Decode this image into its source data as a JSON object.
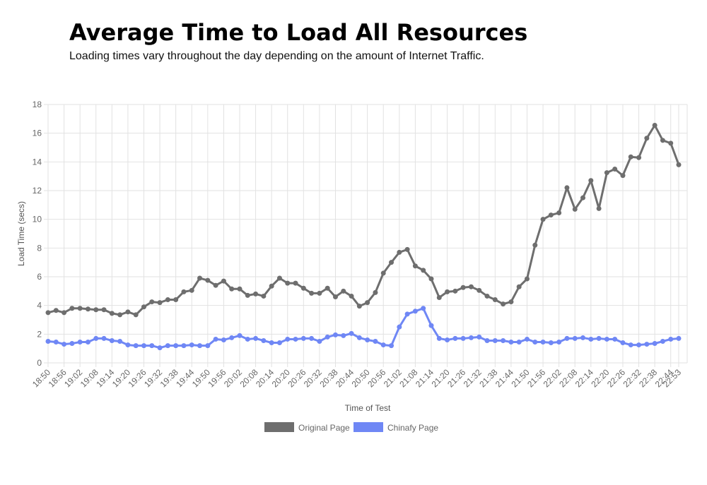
{
  "chart_data": {
    "type": "line",
    "title": "Average Time to Load All Resources",
    "subtitle": "Loading times vary throughout the day depending on the amount of Internet Traffic.",
    "x_label": "Time of Test",
    "y_label": "Load Time (secs)",
    "categories": [
      "18:50",
      null,
      "18:56",
      null,
      "19:02",
      null,
      "19:08",
      null,
      "19:14",
      null,
      "19:20",
      null,
      "19:26",
      null,
      "19:32",
      null,
      "19:38",
      null,
      "19:44",
      null,
      "19:50",
      null,
      "19:56",
      null,
      "20:02",
      null,
      "20:08",
      null,
      "20:14",
      null,
      "20:20",
      null,
      "20:26",
      null,
      "20:32",
      null,
      "20:38",
      null,
      "20:44",
      null,
      "20:50",
      null,
      "20:56",
      null,
      "21:02",
      null,
      "21:08",
      null,
      "21:14",
      null,
      "21:20",
      null,
      "21:26",
      null,
      "21:32",
      null,
      "21:38",
      null,
      "21:44",
      null,
      "21:50",
      null,
      "21:56",
      null,
      "22:02",
      null,
      "22:08",
      null,
      "22:14",
      null,
      "22:20",
      null,
      "22:26",
      null,
      "22:32",
      null,
      "22:38",
      null,
      "22:44",
      "22:53"
    ],
    "series": [
      {
        "name": "Original Page",
        "color": "#6e6e6e",
        "values": [
          3.5,
          3.65,
          3.5,
          3.8,
          3.8,
          3.75,
          3.7,
          3.7,
          3.45,
          3.35,
          3.55,
          3.35,
          3.9,
          4.25,
          4.2,
          4.4,
          4.4,
          4.95,
          5.05,
          5.9,
          5.75,
          5.4,
          5.7,
          5.15,
          5.15,
          4.7,
          4.8,
          4.65,
          5.35,
          5.9,
          5.55,
          5.55,
          5.2,
          4.85,
          4.85,
          5.2,
          4.6,
          5.0,
          4.65,
          3.95,
          4.2,
          4.9,
          6.25,
          7.0,
          7.7,
          7.9,
          6.75,
          6.45,
          5.85,
          4.55,
          4.95,
          5.0,
          5.25,
          5.3,
          5.05,
          4.65,
          4.4,
          4.1,
          4.25,
          5.3,
          5.85,
          8.2,
          10.0,
          10.3,
          10.45,
          12.2,
          10.7,
          11.5,
          12.7,
          10.75,
          13.25,
          13.5,
          13.05,
          14.35,
          14.3,
          15.65,
          16.55,
          15.5,
          15.3,
          13.8
        ]
      },
      {
        "name": "Chinafy Page",
        "color": "#6f87f5",
        "values": [
          1.5,
          1.45,
          1.3,
          1.35,
          1.45,
          1.45,
          1.7,
          1.7,
          1.55,
          1.5,
          1.25,
          1.2,
          1.2,
          1.2,
          1.05,
          1.2,
          1.2,
          1.2,
          1.25,
          1.2,
          1.2,
          1.65,
          1.6,
          1.75,
          1.9,
          1.65,
          1.7,
          1.55,
          1.4,
          1.4,
          1.65,
          1.65,
          1.7,
          1.7,
          1.5,
          1.8,
          1.95,
          1.9,
          2.05,
          1.75,
          1.6,
          1.5,
          1.25,
          1.2,
          2.5,
          3.4,
          3.6,
          3.8,
          2.6,
          1.7,
          1.6,
          1.7,
          1.7,
          1.75,
          1.8,
          1.55,
          1.55,
          1.55,
          1.45,
          1.45,
          1.65,
          1.45,
          1.45,
          1.4,
          1.45,
          1.7,
          1.7,
          1.75,
          1.65,
          1.7,
          1.65,
          1.65,
          1.4,
          1.25,
          1.25,
          1.3,
          1.35,
          1.5,
          1.65,
          1.7
        ]
      }
    ],
    "ylim": [
      0,
      18
    ],
    "yticks": [
      0,
      2,
      4,
      6,
      8,
      10,
      12,
      14,
      16,
      18
    ],
    "grid": true,
    "legend": "bottom"
  }
}
